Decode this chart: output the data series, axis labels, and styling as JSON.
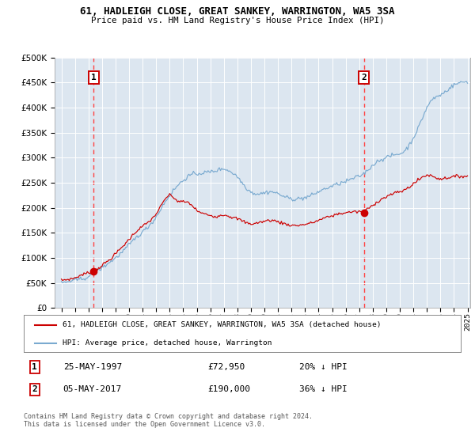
{
  "title": "61, HADLEIGH CLOSE, GREAT SANKEY, WARRINGTON, WA5 3SA",
  "subtitle": "Price paid vs. HM Land Registry's House Price Index (HPI)",
  "bg_color": "#dce6f0",
  "red_line_color": "#cc0000",
  "blue_line_color": "#7aaad0",
  "dashed_color": "#ff4444",
  "marker_color": "#cc0000",
  "sale1_year": 1997.39,
  "sale1_price": 72950,
  "sale2_year": 2017.34,
  "sale2_price": 190000,
  "legend_label_red": "61, HADLEIGH CLOSE, GREAT SANKEY, WARRINGTON, WA5 3SA (detached house)",
  "legend_label_blue": "HPI: Average price, detached house, Warrington",
  "note1_date": "25-MAY-1997",
  "note1_price": "£72,950",
  "note1_hpi": "20% ↓ HPI",
  "note2_date": "05-MAY-2017",
  "note2_price": "£190,000",
  "note2_hpi": "36% ↓ HPI",
  "footer": "Contains HM Land Registry data © Crown copyright and database right 2024.\nThis data is licensed under the Open Government Licence v3.0.",
  "ylim_min": 0,
  "ylim_max": 500000,
  "xlim_min": 1994.5,
  "xlim_max": 2025.2,
  "hpi_anchor_years": [
    1995.0,
    1995.5,
    1996.0,
    1996.5,
    1997.0,
    1997.5,
    1998.0,
    1998.5,
    1999.0,
    1999.5,
    2000.0,
    2000.5,
    2001.0,
    2001.5,
    2002.0,
    2002.5,
    2003.0,
    2003.5,
    2004.0,
    2004.5,
    2005.0,
    2005.5,
    2006.0,
    2006.5,
    2007.0,
    2007.5,
    2008.0,
    2008.5,
    2009.0,
    2009.5,
    2010.0,
    2010.5,
    2011.0,
    2011.5,
    2012.0,
    2012.5,
    2013.0,
    2013.5,
    2014.0,
    2014.5,
    2015.0,
    2015.5,
    2016.0,
    2016.5,
    2017.0,
    2017.5,
    2018.0,
    2018.5,
    2019.0,
    2019.5,
    2020.0,
    2020.5,
    2021.0,
    2021.5,
    2022.0,
    2022.5,
    2023.0,
    2023.5,
    2024.0,
    2024.5,
    2025.0
  ],
  "hpi_anchor_vals": [
    50000,
    52000,
    55000,
    58000,
    62000,
    70000,
    80000,
    90000,
    100000,
    112000,
    126000,
    140000,
    152000,
    165000,
    182000,
    205000,
    225000,
    242000,
    255000,
    265000,
    268000,
    270000,
    272000,
    275000,
    278000,
    272000,
    262000,
    245000,
    232000,
    228000,
    230000,
    232000,
    228000,
    222000,
    218000,
    218000,
    220000,
    225000,
    232000,
    238000,
    243000,
    248000,
    252000,
    258000,
    263000,
    272000,
    285000,
    295000,
    300000,
    305000,
    308000,
    318000,
    340000,
    368000,
    400000,
    418000,
    425000,
    435000,
    445000,
    450000,
    452000
  ],
  "red_anchor_years": [
    1995.0,
    1995.5,
    1996.0,
    1996.5,
    1997.0,
    1997.5,
    1998.0,
    1998.5,
    1999.0,
    1999.5,
    2000.0,
    2000.5,
    2001.0,
    2001.5,
    2002.0,
    2002.5,
    2003.0,
    2003.5,
    2004.0,
    2004.5,
    2005.0,
    2005.5,
    2006.0,
    2006.5,
    2007.0,
    2007.5,
    2008.0,
    2008.5,
    2009.0,
    2009.5,
    2010.0,
    2010.5,
    2011.0,
    2011.5,
    2012.0,
    2012.5,
    2013.0,
    2013.5,
    2014.0,
    2014.5,
    2015.0,
    2015.5,
    2016.0,
    2016.5,
    2017.0,
    2017.5,
    2018.0,
    2018.5,
    2019.0,
    2019.5,
    2020.0,
    2020.5,
    2021.0,
    2021.5,
    2022.0,
    2022.5,
    2023.0,
    2023.5,
    2024.0,
    2024.5,
    2025.0
  ],
  "red_anchor_vals": [
    55000,
    57000,
    60000,
    66000,
    70000,
    75000,
    85000,
    95000,
    108000,
    122000,
    137000,
    152000,
    163000,
    173000,
    188000,
    210000,
    225000,
    215000,
    212000,
    208000,
    195000,
    188000,
    185000,
    183000,
    186000,
    182000,
    178000,
    172000,
    168000,
    170000,
    173000,
    175000,
    172000,
    168000,
    165000,
    165000,
    167000,
    170000,
    175000,
    180000,
    184000,
    188000,
    190000,
    192000,
    192000,
    196000,
    205000,
    215000,
    222000,
    228000,
    232000,
    238000,
    248000,
    258000,
    265000,
    262000,
    258000,
    260000,
    262000,
    263000,
    263000
  ]
}
